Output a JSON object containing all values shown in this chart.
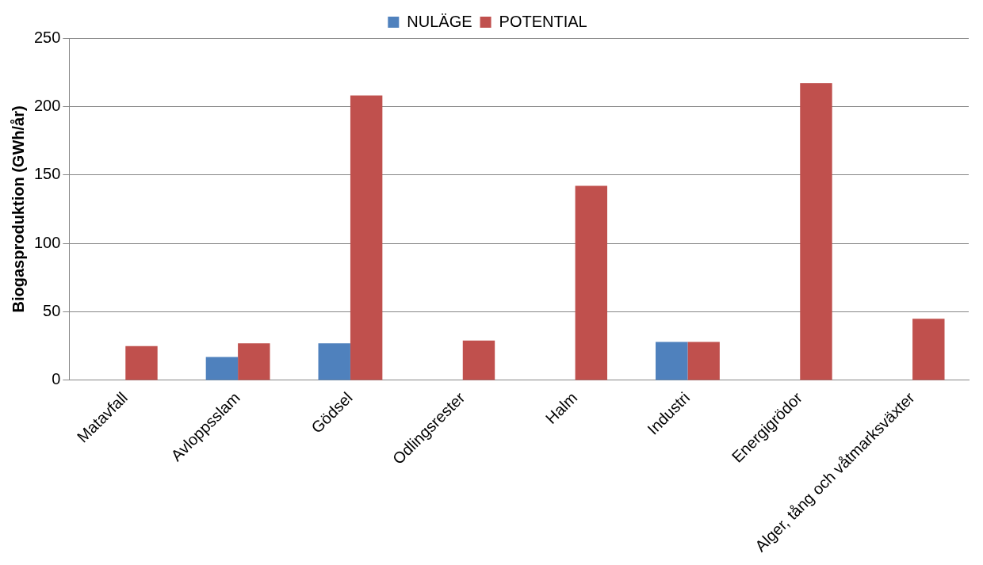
{
  "chart_data": {
    "type": "bar",
    "ylabel": "Biogasproduktion (GWh/år)",
    "categories": [
      "Matavfall",
      "Avloppsslam",
      "Gödsel",
      "Odlingsrester",
      "Halm",
      "Industri",
      "Energigrödor",
      "Alger, tång och våtmarksväxter"
    ],
    "series": [
      {
        "name": "NULÄGE",
        "color": "#4f81bd",
        "values": [
          null,
          17,
          27,
          null,
          null,
          28,
          null,
          null
        ]
      },
      {
        "name": "POTENTIAL",
        "color": "#c0504d",
        "values": [
          25,
          27,
          208,
          29,
          142,
          28,
          217,
          45
        ]
      }
    ],
    "ylim": [
      0,
      250
    ],
    "yticks": [
      0,
      50,
      100,
      150,
      200,
      250
    ],
    "grid": "y",
    "legend": "top"
  }
}
